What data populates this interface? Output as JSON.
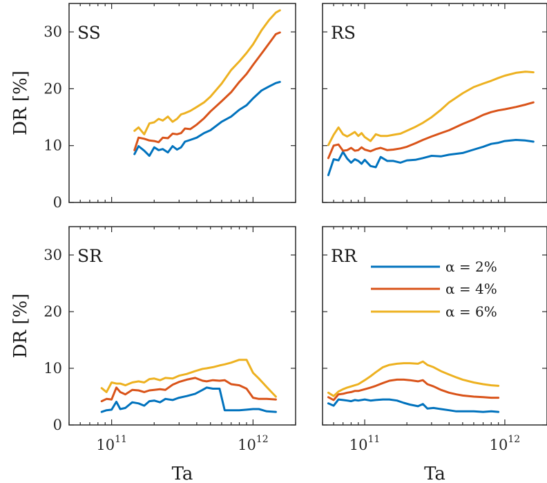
{
  "chart_data": {
    "type": "line",
    "x_scale": "log",
    "y_range": [
      0,
      35
    ],
    "y_ticks": [
      0,
      10,
      20,
      30
    ],
    "x_ticks": [
      {
        "value": 100000000000,
        "base": "10",
        "exp": "11"
      },
      {
        "value": 1000000000000,
        "base": "10",
        "exp": "12"
      }
    ],
    "ylabel": "DR [%]",
    "xlabel": "Ta",
    "legend": {
      "placement": "top-right of RR panel",
      "entries": [
        "α = 2%",
        "α = 4%",
        "α = 6%"
      ]
    },
    "colors": [
      "#0072BD",
      "#D95319",
      "#EDB120"
    ],
    "panels": [
      {
        "label": "SS",
        "xlim": [
          50000000000,
          2000000000000
        ],
        "series": [
          {
            "name": "α = 2%",
            "x": [
              145000000000.0,
              155000000000.0,
              170000000000.0,
              185000000000.0,
              200000000000.0,
              215000000000.0,
              230000000000.0,
              250000000000.0,
              270000000000.0,
              290000000000.0,
              310000000000.0,
              330000000000.0,
              360000000000.0,
              400000000000.0,
              450000000000.0,
              500000000000.0,
              600000000000.0,
              700000000000.0,
              800000000000.0,
              900000000000.0,
              1000000000000.0,
              1150000000000.0,
              1300000000000.0,
              1450000000000.0,
              1550000000000.0
            ],
            "values": [
              8.5,
              9.9,
              9.1,
              8.2,
              9.7,
              9.2,
              9.4,
              8.8,
              9.9,
              9.3,
              9.7,
              10.7,
              11,
              11.4,
              12.2,
              12.7,
              14.2,
              15.1,
              16.3,
              17.1,
              18.3,
              19.7,
              20.4,
              21,
              21.2
            ]
          },
          {
            "name": "α = 4%",
            "x": [
              145000000000.0,
              155000000000.0,
              170000000000.0,
              185000000000.0,
              200000000000.0,
              215000000000.0,
              230000000000.0,
              250000000000.0,
              270000000000.0,
              290000000000.0,
              310000000000.0,
              330000000000.0,
              360000000000.0,
              400000000000.0,
              450000000000.0,
              500000000000.0,
              600000000000.0,
              700000000000.0,
              800000000000.0,
              900000000000.0,
              1000000000000.0,
              1150000000000.0,
              1300000000000.0,
              1450000000000.0,
              1550000000000.0
            ],
            "values": [
              9.2,
              11.4,
              11.2,
              10.9,
              10.8,
              10.6,
              11.4,
              11.3,
              12.1,
              12,
              12.2,
              13,
              12.9,
              13.7,
              14.8,
              16,
              17.8,
              19.4,
              21.2,
              22.6,
              24.2,
              26.2,
              28,
              29.6,
              29.9
            ]
          },
          {
            "name": "α = 6%",
            "x": [
              145000000000.0,
              155000000000.0,
              170000000000.0,
              185000000000.0,
              200000000000.0,
              215000000000.0,
              230000000000.0,
              250000000000.0,
              270000000000.0,
              290000000000.0,
              310000000000.0,
              330000000000.0,
              360000000000.0,
              400000000000.0,
              450000000000.0,
              500000000000.0,
              600000000000.0,
              700000000000.0,
              800000000000.0,
              900000000000.0,
              1000000000000.0,
              1150000000000.0,
              1300000000000.0,
              1450000000000.0,
              1550000000000.0
            ],
            "values": [
              12.6,
              13.2,
              12,
              13.9,
              14.1,
              14.7,
              14.4,
              15.1,
              14.2,
              14.7,
              15.5,
              15.7,
              16.1,
              16.8,
              17.6,
              18.6,
              20.9,
              23.3,
              24.8,
              26.3,
              27.8,
              30.3,
              32.1,
              33.4,
              33.8
            ]
          }
        ]
      },
      {
        "label": "RS",
        "xlim": [
          50000000000,
          2000000000000
        ],
        "series": [
          {
            "name": "α = 2%",
            "x": [
              55000000000.0,
              60000000000.0,
              65000000000.0,
              70000000000.0,
              75000000000.0,
              80000000000.0,
              85000000000.0,
              90000000000.0,
              95000000000.0,
              100000000000.0,
              110000000000.0,
              120000000000.0,
              130000000000.0,
              145000000000.0,
              160000000000.0,
              180000000000.0,
              200000000000.0,
              230000000000.0,
              260000000000.0,
              300000000000.0,
              350000000000.0,
              400000000000.0,
              500000000000.0,
              600000000000.0,
              700000000000.0,
              800000000000.0,
              900000000000.0,
              1000000000000.0,
              1200000000000.0,
              1400000000000.0,
              1600000000000.0
            ],
            "values": [
              4.8,
              7.6,
              7.4,
              8.9,
              7.7,
              7,
              7.6,
              7.3,
              6.8,
              7.5,
              6.4,
              6.2,
              8,
              7.3,
              7.3,
              7,
              7.4,
              7.5,
              7.8,
              8.2,
              8.1,
              8.4,
              8.7,
              9.3,
              9.8,
              10.3,
              10.5,
              10.8,
              11,
              10.9,
              10.7
            ]
          },
          {
            "name": "α = 4%",
            "x": [
              55000000000.0,
              60000000000.0,
              65000000000.0,
              70000000000.0,
              75000000000.0,
              80000000000.0,
              85000000000.0,
              90000000000.0,
              95000000000.0,
              100000000000.0,
              110000000000.0,
              120000000000.0,
              130000000000.0,
              145000000000.0,
              160000000000.0,
              180000000000.0,
              200000000000.0,
              230000000000.0,
              260000000000.0,
              300000000000.0,
              350000000000.0,
              400000000000.0,
              500000000000.0,
              600000000000.0,
              700000000000.0,
              800000000000.0,
              900000000000.0,
              1000000000000.0,
              1200000000000.0,
              1400000000000.0,
              1600000000000.0
            ],
            "values": [
              7.8,
              10,
              10.2,
              9.1,
              9.2,
              9.6,
              9.1,
              9.2,
              9.7,
              9.3,
              9,
              9.4,
              9.6,
              9.2,
              9.3,
              9.5,
              9.8,
              10.4,
              11,
              11.6,
              12.2,
              12.7,
              13.8,
              14.6,
              15.4,
              15.9,
              16.2,
              16.4,
              16.8,
              17.2,
              17.6
            ]
          },
          {
            "name": "α = 6%",
            "x": [
              55000000000.0,
              60000000000.0,
              65000000000.0,
              70000000000.0,
              75000000000.0,
              80000000000.0,
              85000000000.0,
              90000000000.0,
              95000000000.0,
              100000000000.0,
              110000000000.0,
              120000000000.0,
              130000000000.0,
              145000000000.0,
              160000000000.0,
              180000000000.0,
              200000000000.0,
              230000000000.0,
              260000000000.0,
              300000000000.0,
              350000000000.0,
              400000000000.0,
              500000000000.0,
              600000000000.0,
              700000000000.0,
              800000000000.0,
              900000000000.0,
              1000000000000.0,
              1200000000000.0,
              1400000000000.0,
              1600000000000.0
            ],
            "values": [
              10.1,
              11.9,
              13.2,
              12,
              11.6,
              12,
              12.4,
              11.7,
              12.2,
              11.5,
              10.8,
              12,
              11.7,
              11.7,
              11.9,
              12.1,
              12.6,
              13.3,
              14,
              15,
              16.3,
              17.6,
              19.2,
              20.3,
              20.9,
              21.4,
              21.9,
              22.3,
              22.8,
              23,
              22.9
            ]
          }
        ]
      },
      {
        "label": "SR",
        "xlim": [
          50000000000,
          2000000000000
        ],
        "series": [
          {
            "name": "α = 2%",
            "x": [
              85000000000.0,
              92000000000.0,
              100000000000.0,
              108000000000.0,
              115000000000.0,
              125000000000.0,
              140000000000.0,
              155000000000.0,
              170000000000.0,
              185000000000.0,
              200000000000.0,
              220000000000.0,
              240000000000.0,
              270000000000.0,
              300000000000.0,
              340000000000.0,
              390000000000.0,
              440000000000.0,
              470000000000.0,
              520000000000.0,
              580000000000.0,
              630000000000.0,
              700000000000.0,
              800000000000.0,
              900000000000.0,
              1000000000000.0,
              1100000000000.0,
              1250000000000.0,
              1450000000000.0
            ],
            "values": [
              2.3,
              2.6,
              2.7,
              4.1,
              2.8,
              3,
              4,
              3.8,
              3.4,
              4.2,
              4.3,
              4,
              4.6,
              4.4,
              4.8,
              5.1,
              5.5,
              6.2,
              6.6,
              6.4,
              6.4,
              2.6,
              2.6,
              2.6,
              2.7,
              2.8,
              2.8,
              2.4,
              2.3
            ]
          },
          {
            "name": "α = 4%",
            "x": [
              85000000000.0,
              92000000000.0,
              100000000000.0,
              108000000000.0,
              115000000000.0,
              125000000000.0,
              140000000000.0,
              155000000000.0,
              170000000000.0,
              185000000000.0,
              200000000000.0,
              220000000000.0,
              240000000000.0,
              270000000000.0,
              300000000000.0,
              340000000000.0,
              390000000000.0,
              440000000000.0,
              470000000000.0,
              520000000000.0,
              580000000000.0,
              630000000000.0,
              700000000000.0,
              800000000000.0,
              900000000000.0,
              1000000000000.0,
              1100000000000.0,
              1250000000000.0,
              1450000000000.0
            ],
            "values": [
              4.2,
              4.6,
              4.5,
              6.6,
              5.8,
              5.4,
              6.2,
              6.1,
              5.8,
              6.1,
              6.2,
              6.3,
              6.2,
              7.1,
              7.6,
              8,
              8.3,
              7.8,
              7.7,
              7.9,
              7.8,
              7.9,
              7.2,
              7,
              6.4,
              4.8,
              4.6,
              4.6,
              4.5
            ]
          },
          {
            "name": "α = 6%",
            "x": [
              85000000000.0,
              92000000000.0,
              100000000000.0,
              108000000000.0,
              115000000000.0,
              125000000000.0,
              140000000000.0,
              155000000000.0,
              170000000000.0,
              185000000000.0,
              200000000000.0,
              220000000000.0,
              240000000000.0,
              270000000000.0,
              300000000000.0,
              340000000000.0,
              390000000000.0,
              440000000000.0,
              470000000000.0,
              520000000000.0,
              580000000000.0,
              630000000000.0,
              700000000000.0,
              800000000000.0,
              900000000000.0,
              1000000000000.0,
              1100000000000.0,
              1250000000000.0,
              1450000000000.0
            ],
            "values": [
              6.5,
              5.8,
              7.5,
              7.3,
              7.3,
              7,
              7.5,
              7.7,
              7.5,
              8.1,
              8.2,
              7.9,
              8.3,
              8.2,
              8.7,
              9,
              9.5,
              9.9,
              10,
              10.2,
              10.5,
              10.7,
              11,
              11.5,
              11.5,
              9.2,
              8.2,
              6.7,
              5
            ]
          }
        ]
      },
      {
        "label": "RR",
        "xlim": [
          50000000000,
          2000000000000
        ],
        "series": [
          {
            "name": "α = 2%",
            "x": [
              55000000000.0,
              60000000000.0,
              65000000000.0,
              70000000000.0,
              75000000000.0,
              80000000000.0,
              85000000000.0,
              90000000000.0,
              100000000000.0,
              110000000000.0,
              120000000000.0,
              135000000000.0,
              150000000000.0,
              170000000000.0,
              190000000000.0,
              210000000000.0,
              240000000000.0,
              260000000000.0,
              280000000000.0,
              310000000000.0,
              350000000000.0,
              400000000000.0,
              450000000000.0,
              500000000000.0,
              600000000000.0,
              700000000000.0,
              800000000000.0,
              900000000000.0
            ],
            "values": [
              3.8,
              3.4,
              4.5,
              4.4,
              4.3,
              4.2,
              4.4,
              4.3,
              4.5,
              4.3,
              4.4,
              4.5,
              4.5,
              4.3,
              3.9,
              3.6,
              3.3,
              3.7,
              2.9,
              3,
              2.8,
              2.6,
              2.4,
              2.4,
              2.4,
              2.3,
              2.4,
              2.3
            ]
          },
          {
            "name": "α = 4%",
            "x": [
              55000000000.0,
              60000000000.0,
              65000000000.0,
              70000000000.0,
              75000000000.0,
              80000000000.0,
              85000000000.0,
              90000000000.0,
              100000000000.0,
              110000000000.0,
              120000000000.0,
              135000000000.0,
              150000000000.0,
              170000000000.0,
              190000000000.0,
              210000000000.0,
              240000000000.0,
              260000000000.0,
              280000000000.0,
              310000000000.0,
              350000000000.0,
              400000000000.0,
              450000000000.0,
              500000000000.0,
              600000000000.0,
              700000000000.0,
              800000000000.0,
              900000000000.0
            ],
            "values": [
              4.9,
              4.4,
              5.4,
              5.5,
              5.7,
              5.8,
              6,
              6,
              6.3,
              6.6,
              6.9,
              7.4,
              7.8,
              8,
              8,
              7.9,
              7.7,
              7.9,
              7.2,
              6.8,
              6.2,
              5.7,
              5.4,
              5.2,
              5,
              4.9,
              4.8,
              4.8
            ]
          },
          {
            "name": "α = 6%",
            "x": [
              55000000000.0,
              60000000000.0,
              65000000000.0,
              70000000000.0,
              75000000000.0,
              80000000000.0,
              85000000000.0,
              90000000000.0,
              100000000000.0,
              110000000000.0,
              120000000000.0,
              135000000000.0,
              150000000000.0,
              170000000000.0,
              190000000000.0,
              210000000000.0,
              240000000000.0,
              260000000000.0,
              280000000000.0,
              310000000000.0,
              350000000000.0,
              400000000000.0,
              450000000000.0,
              500000000000.0,
              600000000000.0,
              700000000000.0,
              800000000000.0,
              900000000000.0
            ],
            "values": [
              5.7,
              5.1,
              5.9,
              6.3,
              6.6,
              6.8,
              7,
              7.2,
              7.9,
              8.6,
              9.3,
              10.2,
              10.6,
              10.8,
              10.9,
              10.9,
              10.8,
              11.2,
              10.6,
              10.2,
              9.5,
              8.9,
              8.4,
              8,
              7.5,
              7.2,
              7,
              6.9
            ]
          }
        ]
      }
    ]
  }
}
